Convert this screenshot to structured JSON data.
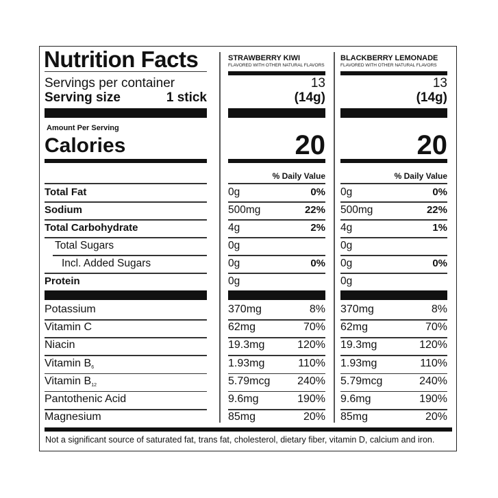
{
  "label": {
    "title": "Nutrition Facts",
    "servings_label": "Servings per container",
    "serving_size_label": "Serving size",
    "serving_size_value": "1 stick",
    "amount_per_serving": "Amount Per Serving",
    "calories_label": "Calories",
    "footnote": "Not a significant source of saturated fat, trans fat, cholesterol, dietary fiber, vitamin D, calcium and iron."
  },
  "products": [
    {
      "name": "STRAWBERRY KIWI",
      "subtitle": "FLAVORED WITH OTHER NATURAL FLAVORS",
      "servings": "13",
      "serving_weight": "(14g)",
      "calories": "20",
      "dv_header": "% Daily Value"
    },
    {
      "name": "BLACKBERRY LEMONADE",
      "subtitle": "FLAVORED WITH OTHER NATURAL FLAVORS",
      "servings": "13",
      "serving_weight": "(14g)",
      "calories": "20",
      "dv_header": "% Daily Value"
    }
  ],
  "nutrients": [
    {
      "name": "Total Fat",
      "bold": true,
      "indent": 0,
      "values": [
        [
          "0g",
          "0%"
        ],
        [
          "0g",
          "0%"
        ]
      ]
    },
    {
      "name": "Sodium",
      "bold": true,
      "indent": 0,
      "values": [
        [
          "500mg",
          "22%"
        ],
        [
          "500mg",
          "22%"
        ]
      ]
    },
    {
      "name": "Total Carbohydrate",
      "bold": true,
      "indent": 0,
      "values": [
        [
          "4g",
          "2%"
        ],
        [
          "4g",
          "1%"
        ]
      ]
    },
    {
      "name": "Total Sugars",
      "bold": false,
      "indent": 1,
      "values": [
        [
          "0g",
          ""
        ],
        [
          "0g",
          ""
        ]
      ]
    },
    {
      "name": "Incl. Added Sugars",
      "bold": false,
      "indent": 2,
      "values": [
        [
          "0g",
          "0%"
        ],
        [
          "0g",
          "0%"
        ]
      ]
    },
    {
      "name": "Protein",
      "bold": true,
      "indent": 0,
      "values": [
        [
          "0g",
          ""
        ],
        [
          "0g",
          ""
        ]
      ]
    }
  ],
  "micronutrients": [
    {
      "name": "Potassium",
      "sub": "",
      "values": [
        [
          "370mg",
          "8%"
        ],
        [
          "370mg",
          "8%"
        ]
      ]
    },
    {
      "name": "Vitamin C",
      "sub": "",
      "values": [
        [
          "62mg",
          "70%"
        ],
        [
          "62mg",
          "70%"
        ]
      ]
    },
    {
      "name": "Niacin",
      "sub": "",
      "values": [
        [
          "19.3mg",
          "120%"
        ],
        [
          "19.3mg",
          "120%"
        ]
      ]
    },
    {
      "name": "Vitamin B",
      "sub": "6",
      "values": [
        [
          "1.93mg",
          "110%"
        ],
        [
          "1.93mg",
          "110%"
        ]
      ]
    },
    {
      "name": "Vitamin B",
      "sub": "12",
      "values": [
        [
          "5.79mcg",
          "240%"
        ],
        [
          "5.79mcg",
          "240%"
        ]
      ]
    },
    {
      "name": "Pantothenic Acid",
      "sub": "",
      "values": [
        [
          "9.6mg",
          "190%"
        ],
        [
          "9.6mg",
          "190%"
        ]
      ]
    },
    {
      "name": "Magnesium",
      "sub": "",
      "values": [
        [
          "85mg",
          "20%"
        ],
        [
          "85mg",
          "20%"
        ]
      ]
    }
  ]
}
